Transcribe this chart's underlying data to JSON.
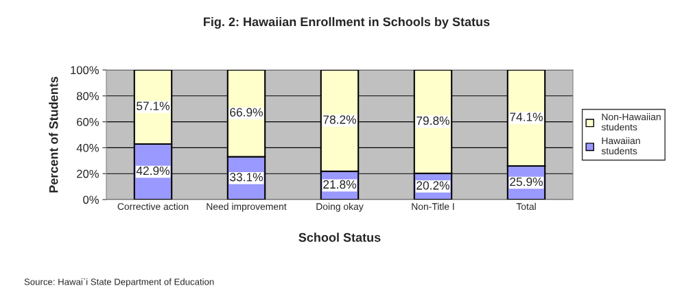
{
  "chart_data": {
    "type": "bar",
    "stacked": true,
    "title": "Fig. 2: Hawaiian Enrollment in Schools by Status",
    "xlabel": "School Status",
    "ylabel": "Percent of Students",
    "categories": [
      "Corrective action",
      "Need improvement",
      "Doing okay",
      "Non-Title I",
      "Total"
    ],
    "series": [
      {
        "name": "Hawaiian students",
        "color": "#9999ff",
        "values": [
          42.9,
          33.1,
          21.8,
          20.2,
          25.9
        ],
        "value_labels": [
          "42.9%",
          "33.1%",
          "21.8%",
          "20.2%",
          "25.9%"
        ]
      },
      {
        "name": "Non-Hawaiian students",
        "color": "#ffffcc",
        "values": [
          57.1,
          66.9,
          78.2,
          79.8,
          74.1
        ],
        "value_labels": [
          "57.1%",
          "66.9%",
          "78.2%",
          "79.8%",
          "74.1%"
        ]
      }
    ],
    "ylim": [
      0,
      100
    ],
    "yticks": [
      {
        "value": 0,
        "label": "0%"
      },
      {
        "value": 20,
        "label": "20%"
      },
      {
        "value": 40,
        "label": "40%"
      },
      {
        "value": 60,
        "label": "60%"
      },
      {
        "value": 80,
        "label": "80%"
      },
      {
        "value": 100,
        "label": "100%"
      }
    ],
    "grid": "y",
    "legend": "right",
    "annotations": [
      "Source: Hawai`i State Department of Education"
    ]
  }
}
